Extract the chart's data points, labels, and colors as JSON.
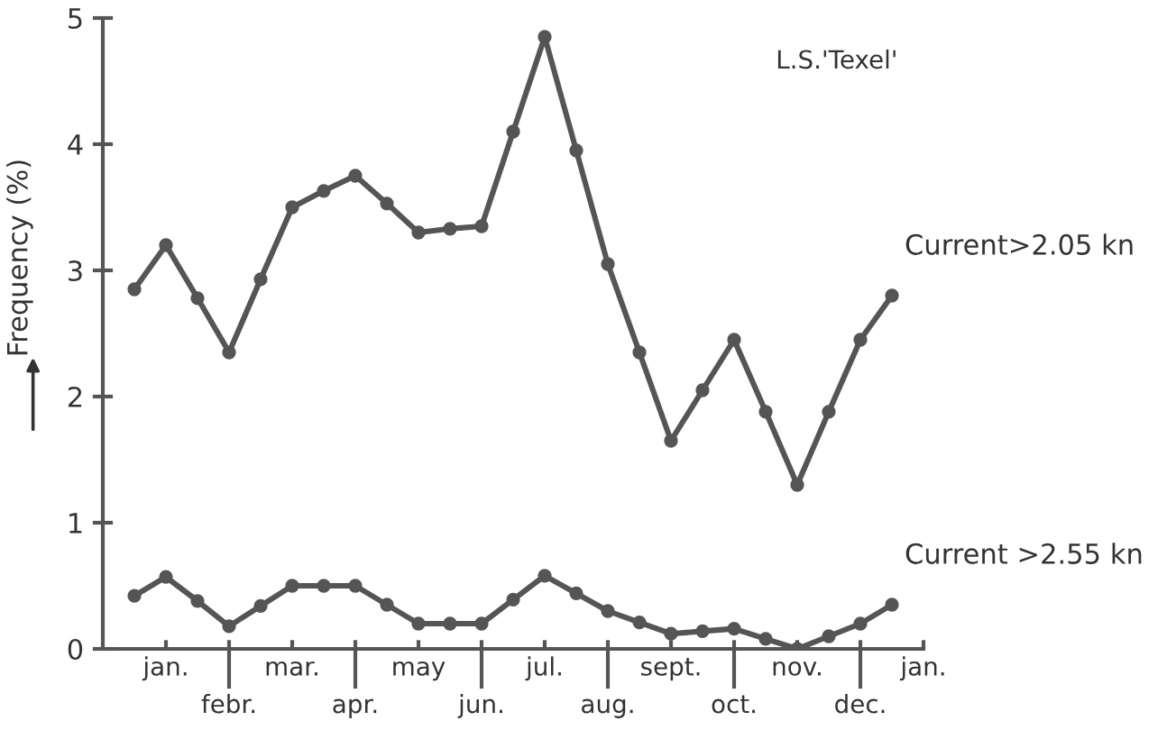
{
  "chart_data": {
    "type": "line",
    "ylabel": "Frequency (%)",
    "annotations": [
      "L.S.'Texel'"
    ],
    "categories": [
      null,
      "jan.",
      null,
      "febr.",
      null,
      "mar.",
      null,
      "apr.",
      null,
      "may",
      null,
      "jun.",
      null,
      "jul.",
      null,
      "aug.",
      null,
      "sept.",
      null,
      "oct.",
      null,
      "nov.",
      null,
      "dec.",
      null,
      "jan."
    ],
    "series": [
      {
        "name": "Current>2.05 kn",
        "color": "#555555",
        "values": [
          2.85,
          3.2,
          2.78,
          2.35,
          2.93,
          3.5,
          3.63,
          3.75,
          3.53,
          3.3,
          3.33,
          3.35,
          4.1,
          4.85,
          3.95,
          3.05,
          2.35,
          1.65,
          2.05,
          2.45,
          1.88,
          1.3,
          1.88,
          2.45,
          2.8,
          null
        ]
      },
      {
        "name": "Current >2.55 kn",
        "color": "#555555",
        "values": [
          0.42,
          0.57,
          0.38,
          0.18,
          0.34,
          0.5,
          0.5,
          0.5,
          0.35,
          0.2,
          0.2,
          0.2,
          0.39,
          0.58,
          0.44,
          0.3,
          0.21,
          0.12,
          0.14,
          0.16,
          0.08,
          0.0,
          0.1,
          0.2,
          0.35,
          null
        ]
      }
    ],
    "ylim": [
      0,
      5
    ],
    "yticks": [
      0,
      1,
      2,
      3,
      4,
      5
    ],
    "grid": false,
    "legend": false,
    "marker": "circle",
    "line_style": "solid"
  }
}
